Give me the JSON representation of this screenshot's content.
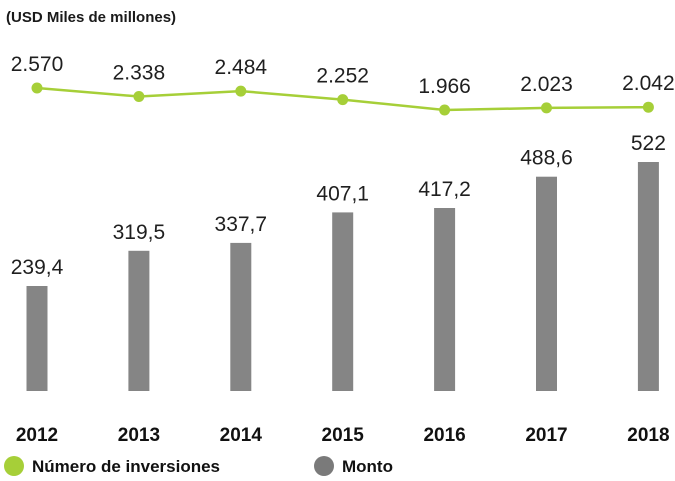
{
  "chart_data": {
    "type": "bar",
    "subtitle": "(USD Miles de millones)",
    "categories": [
      "2012",
      "2013",
      "2014",
      "2015",
      "2016",
      "2017",
      "2018"
    ],
    "bar_series": {
      "name": "Monto",
      "values": [
        239.4,
        319.5,
        337.7,
        407.1,
        417.2,
        488.6,
        522
      ],
      "labels": [
        "239,4",
        "319,5",
        "337,7",
        "407,1",
        "417,2",
        "488,6",
        "522"
      ],
      "color": "#858585"
    },
    "line_series": {
      "name": "Número de inversiones",
      "values": [
        2570,
        2338,
        2484,
        2252,
        1966,
        2023,
        2042
      ],
      "labels": [
        "2.570",
        "2.338",
        "2.484",
        "2.252",
        "1.966",
        "2.023",
        "2.042"
      ],
      "color": "#a6cf38"
    },
    "legend": {
      "position": "bottom-left",
      "items": [
        {
          "label": "Número de inversiones",
          "color": "#a6cf38"
        },
        {
          "label": "Monto",
          "color": "#7a7a7a"
        }
      ]
    }
  }
}
